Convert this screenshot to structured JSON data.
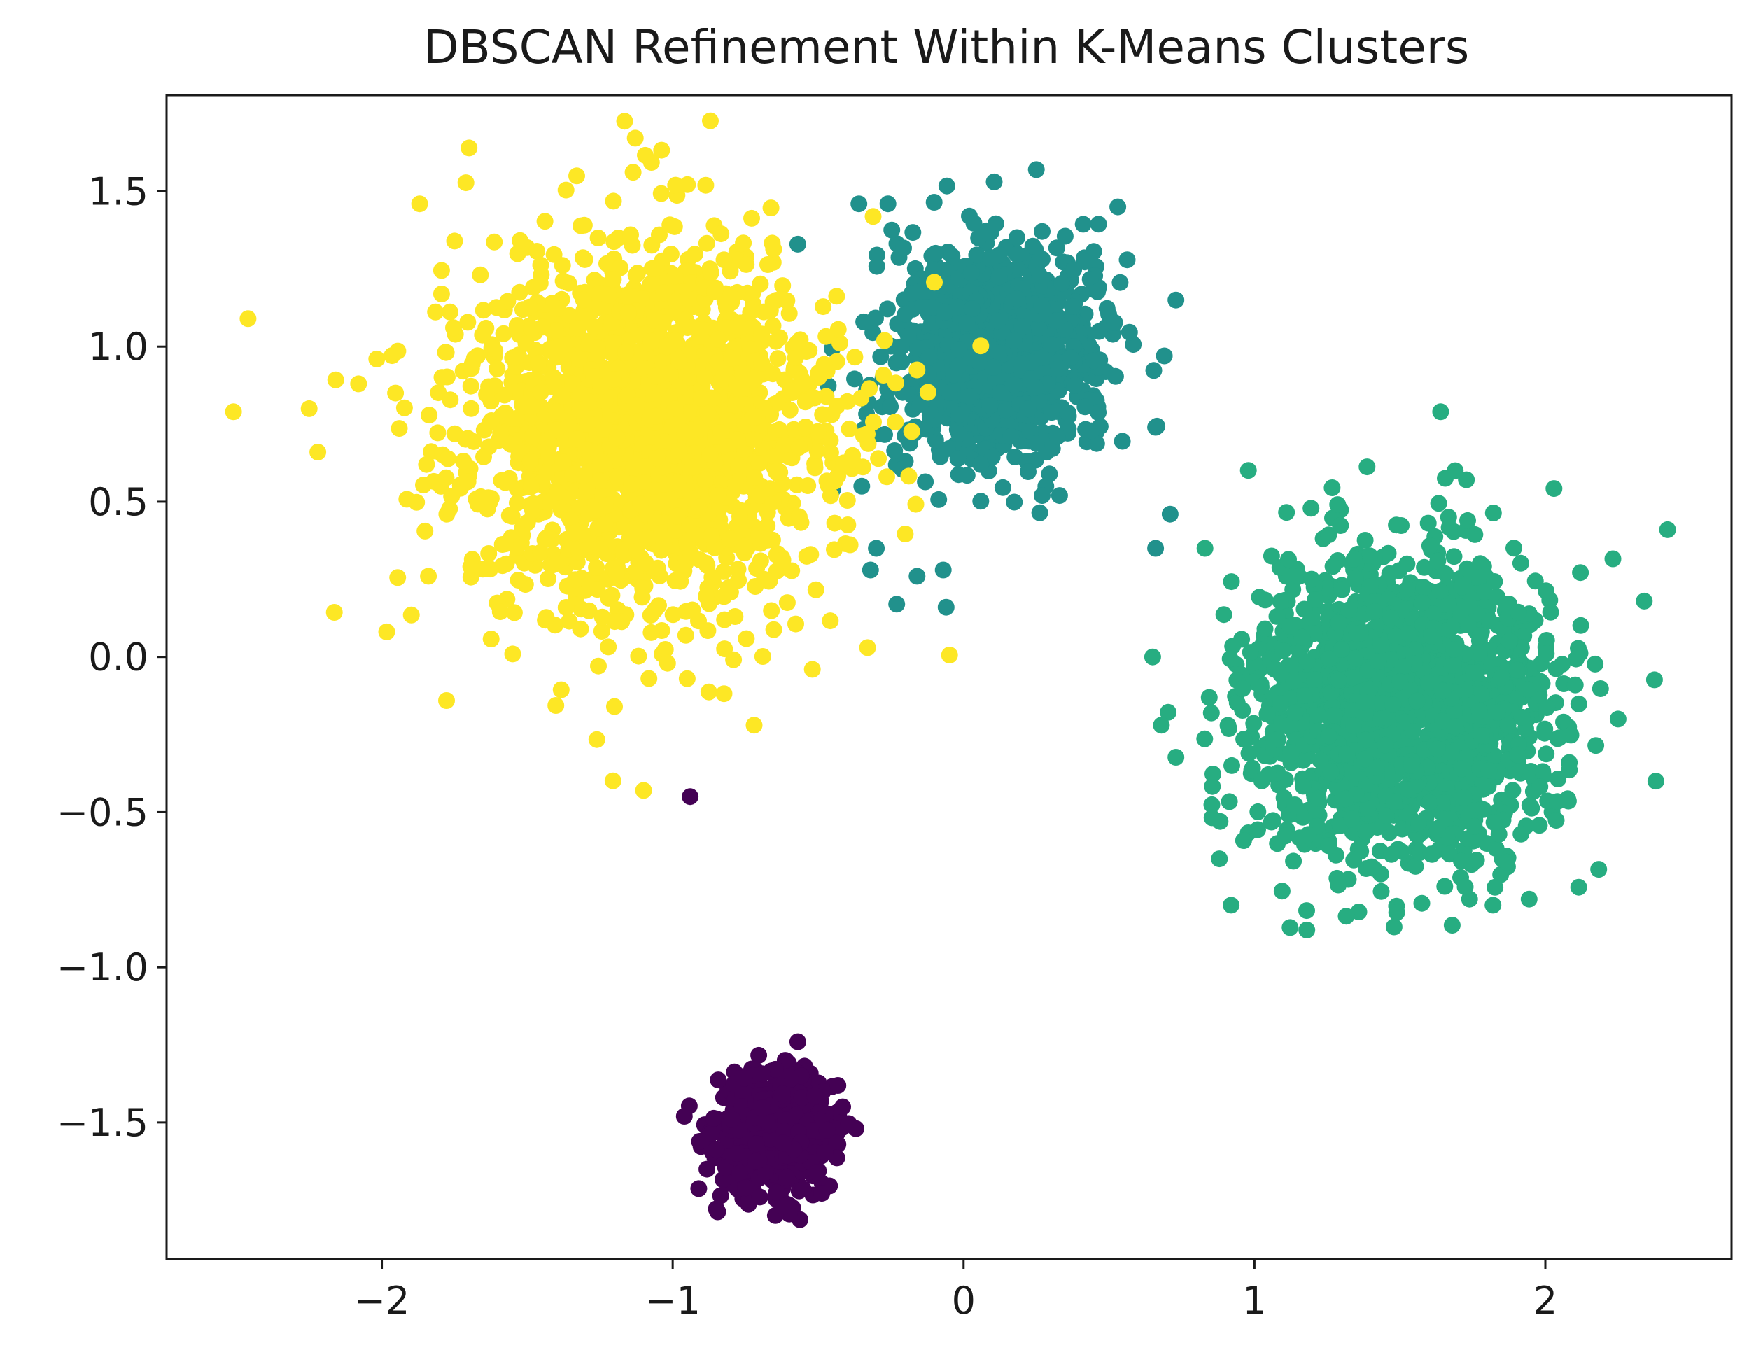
{
  "chart_data": {
    "type": "scatter",
    "title": "DBSCAN Refinement Within K-Means Clusters",
    "xlabel": "",
    "ylabel": "",
    "xlim": [
      -2.74,
      2.64
    ],
    "ylim": [
      -1.94,
      1.81
    ],
    "x_ticks": [
      -2,
      -1,
      0,
      1,
      2
    ],
    "x_tick_labels": [
      "−2",
      "−1",
      "0",
      "1",
      "2"
    ],
    "y_ticks": [
      -1.5,
      -1.0,
      -0.5,
      0.0,
      0.5,
      1.0,
      1.5
    ],
    "y_tick_labels": [
      "−1.5",
      "−1.0",
      "−0.5",
      "0.0",
      "0.5",
      "1.0",
      "1.5"
    ],
    "grid": false,
    "legend": "none",
    "clusters": [
      {
        "color": "#440154",
        "center": [
          -0.65,
          -1.53
        ],
        "spread": [
          0.1,
          0.09
        ],
        "count": 700,
        "points": [
          [
            -0.94,
            -0.45
          ],
          [
            -0.57,
            -1.24
          ],
          [
            -0.62,
            -1.77
          ],
          [
            -0.96,
            -1.48
          ],
          [
            -0.37,
            -1.52
          ]
        ]
      },
      {
        "color": "#21918c",
        "center": [
          0.12,
          0.98
        ],
        "spread": [
          0.17,
          0.17
        ],
        "count": 1100,
        "points": [
          [
            0.25,
            1.57
          ],
          [
            -0.36,
            1.46
          ],
          [
            -0.26,
            1.46
          ],
          [
            0.53,
            1.45
          ],
          [
            0.73,
            1.15
          ],
          [
            0.69,
            0.97
          ],
          [
            0.66,
            0.74
          ],
          [
            0.71,
            0.46
          ],
          [
            0.66,
            0.35
          ],
          [
            -0.3,
            0.35
          ],
          [
            -0.23,
            0.17
          ],
          [
            -0.06,
            0.16
          ],
          [
            -0.07,
            0.28
          ],
          [
            -0.16,
            0.26
          ],
          [
            -0.32,
            0.28
          ],
          [
            0.27,
            0.52
          ],
          [
            0.33,
            0.52
          ],
          [
            -0.57,
            1.33
          ],
          [
            -0.45,
            0.54
          ],
          [
            -0.35,
            0.55
          ]
        ]
      },
      {
        "color": "#fde725",
        "center": [
          -1.08,
          0.72
        ],
        "spread": [
          0.32,
          0.3
        ],
        "count": 1900,
        "points": [
          [
            -1.7,
            1.64
          ],
          [
            -2.46,
            1.09
          ],
          [
            -2.51,
            0.79
          ],
          [
            -2.22,
            0.66
          ],
          [
            -2.25,
            0.8
          ],
          [
            -2.08,
            0.88
          ],
          [
            -1.33,
            1.55
          ],
          [
            -0.99,
            1.52
          ],
          [
            -1.87,
            1.46
          ],
          [
            -1.2,
            -0.16
          ],
          [
            -1.1,
            -0.43
          ],
          [
            -0.72,
            -0.22
          ],
          [
            -0.52,
            -0.04
          ],
          [
            -0.33,
            0.03
          ],
          [
            -0.95,
            -0.07
          ],
          [
            -1.75,
            1.34
          ],
          [
            -1.84,
            0.26
          ]
        ]
      },
      {
        "color": "#27ad81",
        "center": [
          1.5,
          -0.15
        ],
        "spread": [
          0.25,
          0.25
        ],
        "count": 1700,
        "points": [
          [
            1.64,
            0.79
          ],
          [
            2.42,
            0.41
          ],
          [
            2.38,
            -0.4
          ],
          [
            0.65,
            0.0
          ],
          [
            1.18,
            -0.88
          ],
          [
            1.48,
            -0.87
          ],
          [
            0.92,
            -0.8
          ],
          [
            1.82,
            -0.8
          ],
          [
            2.34,
            0.18
          ],
          [
            0.83,
            0.35
          ],
          [
            1.69,
            0.6
          ],
          [
            0.68,
            -0.22
          ],
          [
            2.25,
            -0.2
          ]
        ]
      }
    ]
  }
}
